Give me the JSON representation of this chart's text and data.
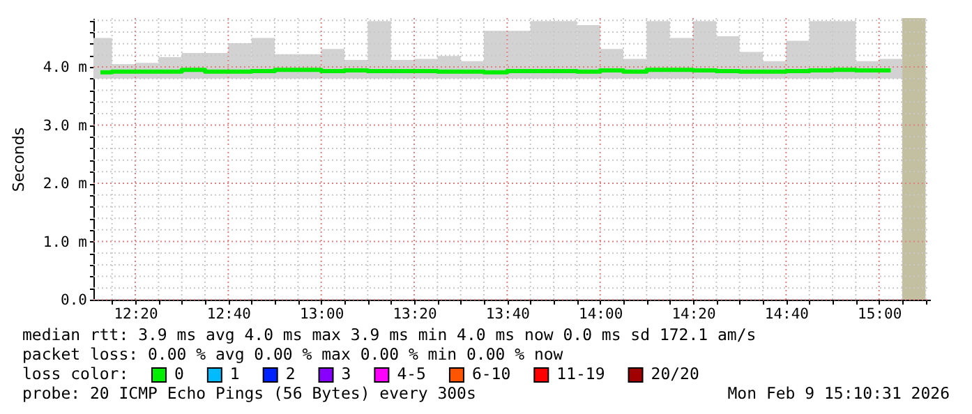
{
  "chart_data": {
    "type": "bar",
    "ylabel": "Seconds",
    "legend_title": "loss color:",
    "legend": "bottom",
    "grid": true,
    "x": [
      12.2083,
      12.2917,
      12.375,
      12.4583,
      12.5417,
      12.625,
      12.7083,
      12.7917,
      12.875,
      12.9583,
      13.0417,
      13.125,
      13.2083,
      13.2917,
      13.375,
      13.4583,
      13.5417,
      13.625,
      13.7083,
      13.7917,
      13.875,
      13.9583,
      14.0417,
      14.125,
      14.2083,
      14.2917,
      14.375,
      14.4583,
      14.5417,
      14.625,
      14.7083,
      14.7917,
      14.875,
      14.9583,
      15.0417
    ],
    "xlim": [
      12.1833,
      15.1833
    ],
    "xticks": [
      {
        "value": 12.25,
        "label": null
      },
      {
        "value": 12.3333,
        "label": "12:20"
      },
      {
        "value": 12.4167,
        "label": null
      },
      {
        "value": 12.5,
        "label": null
      },
      {
        "value": 12.5833,
        "label": null
      },
      {
        "value": 12.6667,
        "label": "12:40"
      },
      {
        "value": 12.75,
        "label": null
      },
      {
        "value": 12.8333,
        "label": null
      },
      {
        "value": 12.9167,
        "label": null
      },
      {
        "value": 13,
        "label": "13:00"
      },
      {
        "value": 13.0833,
        "label": null
      },
      {
        "value": 13.1667,
        "label": null
      },
      {
        "value": 13.25,
        "label": null
      },
      {
        "value": 13.3333,
        "label": "13:20"
      },
      {
        "value": 13.4167,
        "label": null
      },
      {
        "value": 13.5,
        "label": null
      },
      {
        "value": 13.5833,
        "label": null
      },
      {
        "value": 13.6667,
        "label": "13:40"
      },
      {
        "value": 13.75,
        "label": null
      },
      {
        "value": 13.8333,
        "label": null
      },
      {
        "value": 13.9167,
        "label": null
      },
      {
        "value": 14,
        "label": "14:00"
      },
      {
        "value": 14.0833,
        "label": null
      },
      {
        "value": 14.1667,
        "label": null
      },
      {
        "value": 14.25,
        "label": null
      },
      {
        "value": 14.3333,
        "label": "14:20"
      },
      {
        "value": 14.4167,
        "label": null
      },
      {
        "value": 14.5,
        "label": null
      },
      {
        "value": 14.5833,
        "label": null
      },
      {
        "value": 14.6667,
        "label": "14:40"
      },
      {
        "value": 14.75,
        "label": null
      },
      {
        "value": 14.8333,
        "label": null
      },
      {
        "value": 14.9167,
        "label": null
      },
      {
        "value": 15,
        "label": "15:00"
      },
      {
        "value": 15.0833,
        "label": null
      },
      {
        "value": 15.1667,
        "label": null
      }
    ],
    "ylim": [
      0,
      4.84
    ],
    "yticks": [
      {
        "value": 0,
        "label": "0.0"
      },
      {
        "value": 0.2,
        "label": null
      },
      {
        "value": 0.4,
        "label": null
      },
      {
        "value": 0.6,
        "label": null
      },
      {
        "value": 0.8,
        "label": null
      },
      {
        "value": 1,
        "label": "1.0 m"
      },
      {
        "value": 1.2,
        "label": null
      },
      {
        "value": 1.4,
        "label": null
      },
      {
        "value": 1.6,
        "label": null
      },
      {
        "value": 1.8,
        "label": null
      },
      {
        "value": 2,
        "label": "2.0 m"
      },
      {
        "value": 2.2,
        "label": null
      },
      {
        "value": 2.4,
        "label": null
      },
      {
        "value": 2.6,
        "label": null
      },
      {
        "value": 2.8,
        "label": null
      },
      {
        "value": 3,
        "label": "3.0 m"
      },
      {
        "value": 3.2,
        "label": null
      },
      {
        "value": 3.4,
        "label": null
      },
      {
        "value": 3.6,
        "label": null
      },
      {
        "value": 3.8,
        "label": null
      },
      {
        "value": 4,
        "label": "4.0 m"
      },
      {
        "value": 4.2,
        "label": null
      },
      {
        "value": 4.4,
        "label": null
      },
      {
        "value": 4.6,
        "label": null
      },
      {
        "value": 4.8,
        "label": null
      }
    ],
    "series": [
      {
        "type": "bar",
        "color": "#d2d2d2",
        "base": [
          3.8,
          3.8,
          3.8,
          3.8,
          3.8,
          3.8,
          3.8,
          3.8,
          3.8,
          3.8,
          3.8,
          3.8,
          3.8,
          3.8,
          3.8,
          3.8,
          3.8,
          3.8,
          3.8,
          3.8,
          3.8,
          3.8,
          3.8,
          3.8,
          3.8,
          3.8,
          3.8,
          3.8,
          3.8,
          3.8,
          3.8,
          3.8,
          3.8,
          3.8,
          3.8
        ],
        "values": [
          0.7,
          0.25,
          0.27,
          0.37,
          0.44,
          0.44,
          0.61,
          0.7,
          0.42,
          0.42,
          0.51,
          0.32,
          0.99,
          0.32,
          0.34,
          0.39,
          0.3,
          0.82,
          0.82,
          0.99,
          0.99,
          0.92,
          0.51,
          0.34,
          0.99,
          0.7,
          0.99,
          0.73,
          0.46,
          0.3,
          0.65,
          0.99,
          0.99,
          0.3,
          0.34
        ]
      },
      {
        "type": "step",
        "name": "0",
        "color": "#00ee00",
        "values": [
          3.91,
          3.92,
          3.92,
          3.92,
          3.95,
          3.92,
          3.92,
          3.93,
          3.95,
          3.95,
          3.93,
          3.94,
          3.93,
          3.93,
          3.93,
          3.92,
          3.92,
          3.91,
          3.93,
          3.93,
          3.93,
          3.92,
          3.94,
          3.92,
          3.95,
          3.95,
          3.94,
          3.93,
          3.92,
          3.92,
          3.93,
          3.94,
          3.95,
          3.94,
          3.94
        ]
      },
      {
        "type": "step",
        "name": "1",
        "color": "#00bbff",
        "values": [
          null,
          null,
          null,
          null,
          null,
          null,
          null,
          null,
          null,
          null,
          null,
          null,
          null,
          null,
          null,
          null,
          null,
          null,
          null,
          null,
          null,
          null,
          null,
          null,
          null,
          null,
          null,
          null,
          null,
          null,
          null,
          null,
          null,
          null,
          null
        ]
      },
      {
        "type": "step",
        "name": "2",
        "color": "#0022ff",
        "values": [
          null,
          null,
          null,
          null,
          null,
          null,
          null,
          null,
          null,
          null,
          null,
          null,
          null,
          null,
          null,
          null,
          null,
          null,
          null,
          null,
          null,
          null,
          null,
          null,
          null,
          null,
          null,
          null,
          null,
          null,
          null,
          null,
          null,
          null,
          null
        ]
      },
      {
        "type": "step",
        "name": "3",
        "color": "#8800ff",
        "values": [
          null,
          null,
          null,
          null,
          null,
          null,
          null,
          null,
          null,
          null,
          null,
          null,
          null,
          null,
          null,
          null,
          null,
          null,
          null,
          null,
          null,
          null,
          null,
          null,
          null,
          null,
          null,
          null,
          null,
          null,
          null,
          null,
          null,
          null,
          null
        ]
      },
      {
        "type": "step",
        "name": "4-5",
        "color": "#ff00ff",
        "values": [
          null,
          null,
          null,
          null,
          null,
          null,
          null,
          null,
          null,
          null,
          null,
          null,
          null,
          null,
          null,
          null,
          null,
          null,
          null,
          null,
          null,
          null,
          null,
          null,
          null,
          null,
          null,
          null,
          null,
          null,
          null,
          null,
          null,
          null,
          null
        ]
      },
      {
        "type": "step",
        "name": "6-10",
        "color": "#ff5500",
        "values": [
          null,
          null,
          null,
          null,
          null,
          null,
          null,
          null,
          null,
          null,
          null,
          null,
          null,
          null,
          null,
          null,
          null,
          null,
          null,
          null,
          null,
          null,
          null,
          null,
          null,
          null,
          null,
          null,
          null,
          null,
          null,
          null,
          null,
          null,
          null
        ]
      },
      {
        "type": "step",
        "name": "11-19",
        "color": "#ff0000",
        "values": [
          null,
          null,
          null,
          null,
          null,
          null,
          null,
          null,
          null,
          null,
          null,
          null,
          null,
          null,
          null,
          null,
          null,
          null,
          null,
          null,
          null,
          null,
          null,
          null,
          null,
          null,
          null,
          null,
          null,
          null,
          null,
          null,
          null,
          null,
          null
        ]
      },
      {
        "type": "step",
        "name": "20/20",
        "color": "#a10000",
        "values": [
          null,
          null,
          null,
          null,
          null,
          null,
          null,
          null,
          null,
          null,
          null,
          null,
          null,
          null,
          null,
          null,
          null,
          null,
          null,
          null,
          null,
          null,
          null,
          null,
          null,
          null,
          null,
          null,
          null,
          null,
          null,
          null,
          null,
          null,
          null
        ]
      }
    ],
    "bands": [
      {
        "axis": "x",
        "from": 15.0833,
        "to": 15.1667,
        "color": "#c2c0a0"
      }
    ],
    "annotations": [
      "median rtt:  3.9 ms avg  4.0 ms max  3.9 ms min  4.0 ms now  0.0 ms sd  172.1   am/s",
      "packet loss: 0.00 % avg  0.00 % max  0.00 % min  0.00 % now",
      "probe:       20 ICMP Echo Pings (56 Bytes) every 300s",
      "Mon Feb  9 15:10:31 2026"
    ]
  }
}
